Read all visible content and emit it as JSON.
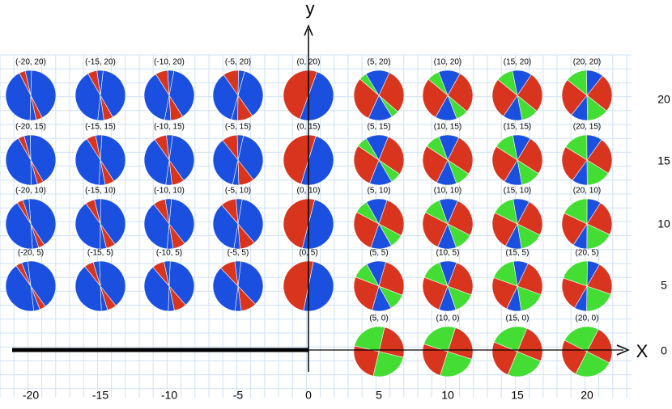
{
  "axes": {
    "x_label": "X",
    "y_label": "y"
  },
  "x_ticks": [
    "-20",
    "-15",
    "-10",
    "-5",
    "0",
    "5",
    "10",
    "15",
    "20"
  ],
  "y_ticks": [
    "20",
    "15",
    "10",
    "5",
    "0"
  ],
  "point_rows": [
    [
      "(-20, 20)",
      "(-15, 20)",
      "(-10, 20)",
      "(-5, 20)",
      "(0, 20)",
      "(5, 20)",
      "(10, 20)",
      "(15, 20)",
      "(20, 20)"
    ],
    [
      "(-20, 15)",
      "(-15, 15)",
      "(-10, 15)",
      "(-5, 15)",
      "(0, 15)",
      "(5, 15)",
      "(10, 15)",
      "(15, 15)",
      "(20, 15)"
    ],
    [
      "(-20, 10)",
      "(-15, 10)",
      "(-10, 10)",
      "(-5, 10)",
      "(0, 10)",
      "(5, 10)",
      "(10, 10)",
      "(15, 10)",
      "(20, 10)"
    ],
    [
      "(-20, 5)",
      "(-15, 5)",
      "(-10, 5)",
      "(-5, 5)",
      "(0, 5)",
      "(5, 5)",
      "(10, 5)",
      "(15, 5)",
      "(20, 5)"
    ],
    [
      "(5, 0)",
      "(10, 0)",
      "(15, 0)",
      "(20, 0)"
    ]
  ]
}
